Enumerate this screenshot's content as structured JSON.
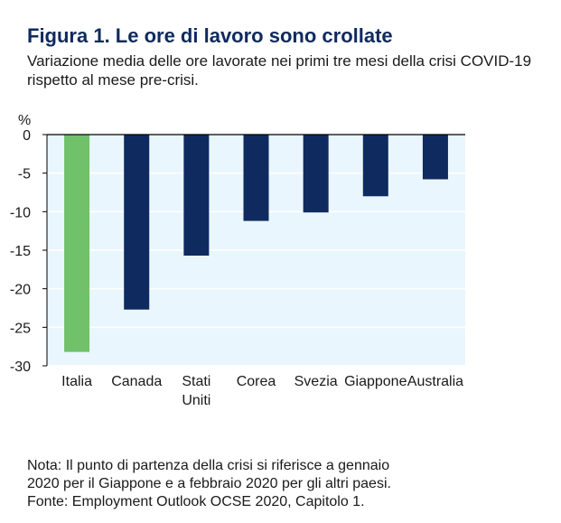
{
  "figure": {
    "title": "Figura 1. Le ore di lavoro sono crollate",
    "subtitle": "Variazione media delle ore lavorate nei primi tre mesi della crisi COVID-19 rispetto al mese pre-crisi.",
    "note_lines": [
      "Nota: Il punto di partenza della crisi si riferisce a gennaio",
      "2020 per il Giappone e a febbraio 2020 per gli altri paesi.",
      "Fonte: Employment Outlook OCSE 2020, Capitolo 1."
    ]
  },
  "chart_data": {
    "type": "bar",
    "title": "Figura 1. Le ore di lavoro sono crollate",
    "subtitle": "Variazione media delle ore lavorate nei primi tre mesi della crisi COVID-19 rispetto al mese pre-crisi.",
    "ylabel": "%",
    "xlabel": "",
    "categories": [
      "Italia",
      "Canada",
      "Stati Uniti",
      "Corea",
      "Svezia",
      "Giappone",
      "Australia"
    ],
    "category_label_lines": [
      [
        "Italia"
      ],
      [
        "Canada"
      ],
      [
        "Stati",
        "Uniti"
      ],
      [
        "Corea"
      ],
      [
        "Svezia"
      ],
      [
        "Giappone"
      ],
      [
        "Australia"
      ]
    ],
    "values": [
      -28.2,
      -22.7,
      -15.7,
      -11.2,
      -10.1,
      -8.0,
      -5.8
    ],
    "bar_colors": [
      "#70c16a",
      "#0f2a5e",
      "#0f2a5e",
      "#0f2a5e",
      "#0f2a5e",
      "#0f2a5e",
      "#0f2a5e"
    ],
    "highlight_color": "#70c16a",
    "bar_color": "#0f2a5e",
    "plot_background": "#eaf6fd",
    "grid_color": "#ffffff",
    "ylim": [
      -30,
      0
    ],
    "yticks": [
      0,
      -5,
      -10,
      -15,
      -20,
      -25,
      -30
    ],
    "ytick_labels": [
      "0",
      "-5",
      "-10",
      "-15",
      "-20",
      "-25",
      "-30"
    ],
    "grid": true,
    "legend": "none"
  }
}
